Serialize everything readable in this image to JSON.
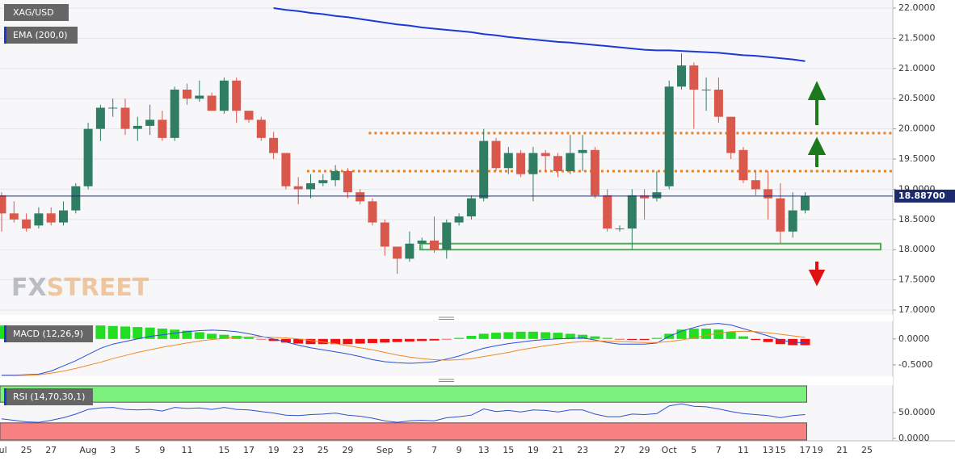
{
  "chart_data": [
    {
      "type": "candlestick",
      "title": "XAG/USD",
      "watermark": [
        "FX",
        "STREET"
      ],
      "categories": [
        "Jul",
        null,
        "25",
        null,
        "27",
        null,
        null,
        "Aug",
        null,
        "3",
        null,
        "5",
        null,
        "9",
        null,
        "11",
        null,
        null,
        "15",
        null,
        "17",
        null,
        "19",
        null,
        "23",
        null,
        "25",
        null,
        "29",
        null,
        null,
        "Sep",
        null,
        "5",
        null,
        "7",
        null,
        "9",
        null,
        "13",
        null,
        "15",
        null,
        "19",
        null,
        "21",
        null,
        "23",
        null,
        null,
        "27",
        null,
        "29",
        null,
        "Oct",
        null,
        "5",
        null,
        "7",
        null,
        "11",
        null,
        "13",
        "15",
        null,
        "17",
        "19",
        null,
        "21",
        null,
        "25"
      ],
      "open": [
        18.9,
        18.6,
        18.5,
        18.4,
        18.6,
        18.45,
        18.65,
        19.05,
        20.0,
        20.35,
        20.35,
        20.0,
        20.05,
        20.15,
        19.85,
        20.65,
        20.5,
        20.55,
        20.3,
        20.8,
        20.3,
        20.15,
        19.85,
        19.6,
        19.05,
        19.0,
        19.1,
        19.15,
        19.3,
        18.95,
        18.8,
        18.45,
        18.05,
        17.85,
        18.1,
        18.15,
        18.0,
        18.45,
        18.55,
        18.85,
        19.8,
        19.35,
        19.6,
        19.25,
        19.6,
        19.55,
        19.3,
        19.6,
        19.65,
        18.9,
        18.35,
        18.35,
        18.9,
        18.85,
        19.05,
        20.7,
        21.05,
        20.65,
        20.65,
        20.2,
        19.65,
        19.15,
        19.0,
        18.85,
        18.3,
        18.65,
        null,
        null,
        null,
        null,
        null
      ],
      "high": [
        18.95,
        18.8,
        18.6,
        18.7,
        18.7,
        18.8,
        19.1,
        20.1,
        20.4,
        20.5,
        20.5,
        20.2,
        20.4,
        20.3,
        20.7,
        20.75,
        20.8,
        20.6,
        20.85,
        20.85,
        20.3,
        20.2,
        19.95,
        19.6,
        19.2,
        19.25,
        19.25,
        19.4,
        19.35,
        19.0,
        18.85,
        18.5,
        18.05,
        18.3,
        18.2,
        18.55,
        18.5,
        18.6,
        18.9,
        20.0,
        19.85,
        19.7,
        19.65,
        19.7,
        19.65,
        19.6,
        19.9,
        19.9,
        19.7,
        19.0,
        18.4,
        19.0,
        19.0,
        19.3,
        20.8,
        21.25,
        21.1,
        20.85,
        20.85,
        20.2,
        19.7,
        19.3,
        19.3,
        19.1,
        18.95,
        18.95,
        null,
        null,
        null,
        null,
        null
      ],
      "low": [
        18.3,
        18.45,
        18.3,
        18.35,
        18.4,
        18.4,
        18.6,
        19.0,
        19.8,
        20.2,
        19.9,
        19.8,
        19.9,
        19.8,
        19.8,
        20.4,
        20.45,
        20.3,
        20.25,
        20.1,
        20.1,
        19.8,
        19.5,
        19.0,
        18.75,
        18.85,
        19.05,
        19.05,
        18.85,
        18.75,
        18.4,
        17.9,
        17.6,
        17.8,
        18.0,
        17.95,
        17.85,
        18.4,
        18.5,
        18.8,
        19.3,
        19.25,
        19.2,
        18.8,
        19.3,
        19.2,
        19.25,
        19.3,
        18.85,
        18.3,
        18.3,
        18.0,
        18.5,
        18.8,
        19.0,
        20.65,
        20.0,
        20.3,
        20.1,
        19.5,
        19.1,
        18.9,
        18.5,
        18.1,
        18.2,
        18.6,
        null,
        null,
        null,
        null,
        null
      ],
      "close": [
        18.6,
        18.5,
        18.35,
        18.6,
        18.45,
        18.65,
        19.05,
        20.0,
        20.35,
        20.35,
        20.0,
        20.05,
        20.15,
        19.85,
        20.65,
        20.5,
        20.55,
        20.3,
        20.8,
        20.3,
        20.15,
        19.85,
        19.6,
        19.05,
        19.0,
        19.1,
        19.15,
        19.3,
        18.95,
        18.8,
        18.45,
        18.05,
        17.85,
        18.1,
        18.15,
        18.0,
        18.45,
        18.55,
        18.85,
        19.8,
        19.35,
        19.6,
        19.25,
        19.6,
        19.55,
        19.3,
        19.6,
        19.65,
        18.9,
        18.35,
        18.35,
        18.9,
        18.85,
        18.95,
        20.7,
        21.05,
        20.65,
        20.65,
        20.2,
        19.6,
        19.15,
        19.0,
        18.85,
        18.3,
        18.65,
        18.887,
        null,
        null,
        null,
        null,
        null
      ],
      "up_color": "#2f7d62",
      "down_color": "#d9574b",
      "series": [
        {
          "name": "EMA (200,0)",
          "color": "#1a3ad8",
          "values": [
            null,
            null,
            null,
            null,
            null,
            null,
            null,
            null,
            null,
            null,
            null,
            null,
            null,
            null,
            null,
            null,
            null,
            null,
            null,
            null,
            null,
            null,
            22.0,
            21.97,
            21.95,
            21.92,
            21.9,
            21.87,
            21.85,
            21.82,
            21.79,
            21.76,
            21.73,
            21.71,
            21.68,
            21.66,
            21.64,
            21.62,
            21.6,
            21.57,
            21.55,
            21.52,
            21.5,
            21.48,
            21.46,
            21.44,
            21.43,
            21.41,
            21.39,
            21.37,
            21.35,
            21.33,
            21.31,
            21.3,
            21.3,
            21.29,
            21.28,
            21.27,
            21.26,
            21.24,
            21.22,
            21.21,
            21.19,
            21.17,
            21.15,
            21.12,
            null,
            null,
            null,
            null,
            null
          ]
        }
      ],
      "resistance_levels": [
        19.93,
        19.3
      ],
      "level_color": "#f07f1a",
      "support_zone": [
        18.0,
        18.1
      ],
      "zone_color": "#4caf50",
      "last_price": {
        "value": 18.887,
        "label": "18.88700"
      },
      "ylim": [
        16.92,
        22.134
      ],
      "yticks": [
        {
          "value": 17,
          "label": "17.0000"
        },
        {
          "value": 17.5,
          "label": "17.5000"
        },
        {
          "value": 18,
          "label": "18.0000"
        },
        {
          "value": 18.5,
          "label": "18.5000"
        },
        {
          "value": 19,
          "label": "19.0000"
        },
        {
          "value": 19.5,
          "label": "19.5000"
        },
        {
          "value": 20,
          "label": "20.0000"
        },
        {
          "value": 20.5,
          "label": "20.5000"
        },
        {
          "value": 21,
          "label": "21.0000"
        },
        {
          "value": 21.5,
          "label": "21.5000"
        },
        {
          "value": 22,
          "label": "22.0000"
        }
      ],
      "grid": true
    },
    {
      "type": "macd",
      "title": "MACD (12,26,9)",
      "histogram": {
        "up_color": "#22dd22",
        "down_color": "#ee1111",
        "values": [
          0.26,
          0.26,
          0.26,
          0.26,
          0.26,
          0.26,
          0.26,
          0.26,
          0.26,
          0.25,
          0.24,
          0.23,
          0.22,
          0.2,
          0.18,
          0.16,
          0.13,
          0.1,
          0.08,
          0.06,
          0.03,
          -0.01,
          -0.04,
          -0.07,
          -0.09,
          -0.1,
          -0.1,
          -0.1,
          -0.1,
          -0.09,
          -0.08,
          -0.07,
          -0.06,
          -0.05,
          -0.04,
          -0.03,
          -0.01,
          0.02,
          0.06,
          0.1,
          0.12,
          0.13,
          0.14,
          0.14,
          0.13,
          0.12,
          0.1,
          0.08,
          0.05,
          0.02,
          -0.01,
          -0.02,
          -0.02,
          0.02,
          0.1,
          0.18,
          0.2,
          0.2,
          0.18,
          0.14,
          0.05,
          -0.02,
          -0.06,
          -0.1,
          -0.12,
          -0.12
        ]
      },
      "series": [
        {
          "color": "#2a4fd8",
          "values": [
            -0.7,
            -0.7,
            -0.69,
            -0.68,
            -0.62,
            -0.52,
            -0.42,
            -0.3,
            -0.18,
            -0.1,
            -0.05,
            0.0,
            0.05,
            0.08,
            0.11,
            0.14,
            0.16,
            0.17,
            0.16,
            0.14,
            0.1,
            0.05,
            0.0,
            -0.06,
            -0.12,
            -0.17,
            -0.21,
            -0.25,
            -0.29,
            -0.34,
            -0.4,
            -0.44,
            -0.46,
            -0.47,
            -0.46,
            -0.44,
            -0.39,
            -0.33,
            -0.25,
            -0.18,
            -0.13,
            -0.09,
            -0.06,
            -0.03,
            -0.01,
            0.0,
            0.01,
            0.02,
            -0.02,
            -0.07,
            -0.1,
            -0.1,
            -0.1,
            -0.08,
            0.05,
            0.15,
            0.22,
            0.28,
            0.3,
            0.27,
            0.2,
            0.13,
            0.06,
            -0.02,
            -0.06,
            -0.08
          ]
        },
        {
          "color": "#f08a24",
          "values": [
            -0.71,
            -0.71,
            -0.7,
            -0.69,
            -0.66,
            -0.62,
            -0.57,
            -0.51,
            -0.45,
            -0.38,
            -0.32,
            -0.26,
            -0.21,
            -0.16,
            -0.12,
            -0.08,
            -0.04,
            -0.01,
            0.01,
            0.03,
            0.04,
            0.04,
            0.03,
            0.02,
            0.0,
            -0.03,
            -0.06,
            -0.09,
            -0.13,
            -0.17,
            -0.21,
            -0.26,
            -0.31,
            -0.35,
            -0.38,
            -0.4,
            -0.41,
            -0.4,
            -0.38,
            -0.34,
            -0.3,
            -0.26,
            -0.21,
            -0.17,
            -0.13,
            -0.1,
            -0.07,
            -0.05,
            -0.04,
            -0.04,
            -0.05,
            -0.06,
            -0.07,
            -0.07,
            -0.05,
            -0.02,
            0.02,
            0.07,
            0.11,
            0.14,
            0.15,
            0.14,
            0.12,
            0.09,
            0.06,
            0.03
          ]
        }
      ],
      "ylim": [
        -0.72,
        0.34
      ],
      "yticks": [
        {
          "value": 0,
          "label": "0.0000"
        },
        {
          "value": -0.5,
          "label": "-0.5000"
        }
      ]
    },
    {
      "type": "rsi",
      "title": "RSI (14,70,30,1)",
      "color": "#3050d0",
      "overbought": 70,
      "oversold": 30,
      "overbought_color": "#7cf07c",
      "oversold_color": "#f88080",
      "values": [
        38,
        35,
        32,
        31,
        35,
        40,
        47,
        56,
        59,
        60,
        56,
        55,
        56,
        53,
        60,
        58,
        59,
        56,
        60,
        56,
        55,
        52,
        49,
        45,
        44,
        46,
        47,
        49,
        45,
        43,
        39,
        34,
        31,
        34,
        35,
        34,
        40,
        42,
        45,
        57,
        52,
        54,
        51,
        55,
        54,
        51,
        55,
        55,
        47,
        42,
        42,
        47,
        46,
        48,
        63,
        67,
        62,
        61,
        57,
        52,
        48,
        46,
        44,
        40,
        44,
        46
      ],
      "ylim": [
        -4.7,
        103.1
      ],
      "yticks": [
        {
          "value": 50,
          "label": "50.0000"
        },
        {
          "value": 0,
          "label": "0.0000"
        }
      ]
    }
  ]
}
